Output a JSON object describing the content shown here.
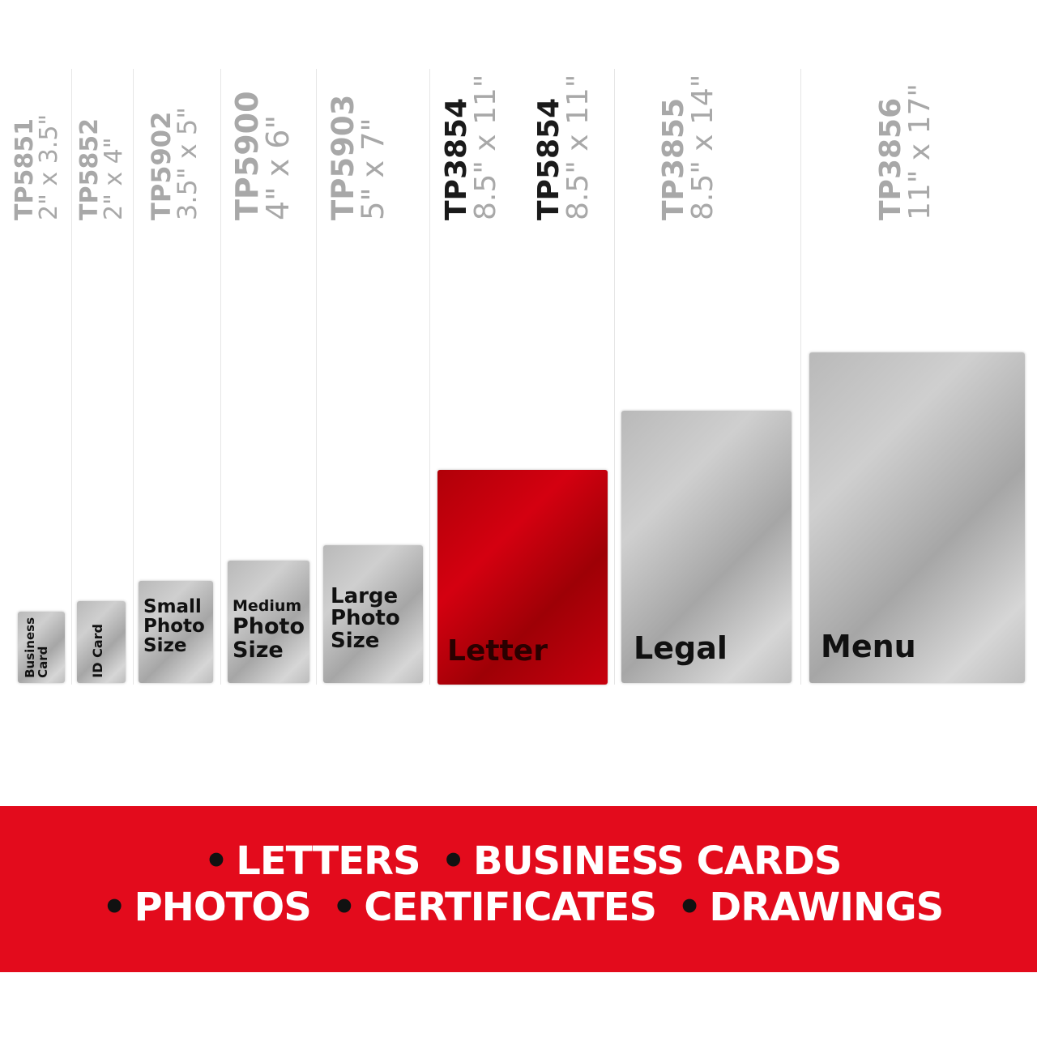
{
  "products": [
    {
      "model": "TP5851",
      "size": "2\" x 3.5\"",
      "card_label": [
        "Business",
        "Card"
      ]
    },
    {
      "model": "TP5852",
      "size": "2\" x 4\"",
      "card_label": [
        "ID Card"
      ]
    },
    {
      "model": "TP5902",
      "size": "3.5\" x 5\"",
      "card_label": [
        "Small",
        "Photo",
        "Size"
      ]
    },
    {
      "model": "TP5900",
      "size": "4\" x 6\"",
      "card_label": [
        "Medium",
        "Photo",
        "Size"
      ]
    },
    {
      "model": "TP5903",
      "size": "5\" x 7\"",
      "card_label": [
        "Large",
        "Photo",
        "Size"
      ]
    },
    {
      "model": "TP3854",
      "size": "8.5\" x 11\"",
      "card_label": [
        "Letter"
      ]
    },
    {
      "model": "TP5854",
      "size": "8.5\" x 11\""
    },
    {
      "model": "TP3855",
      "size": "8.5\" x 14\"",
      "card_label": [
        "Legal"
      ]
    },
    {
      "model": "TP3856",
      "size": "11\" x 17\"",
      "card_label": [
        "Menu"
      ]
    }
  ],
  "banner": {
    "line1": [
      "LETTERS",
      "BUSINESS CARDS"
    ],
    "line2": [
      "PHOTOS",
      "CERTIFICATES",
      "DRAWINGS"
    ],
    "bullet": "•"
  },
  "colors": {
    "highlight": "#d40010",
    "banner": "#e30b1c",
    "label_gray": "#a8a8a8"
  }
}
